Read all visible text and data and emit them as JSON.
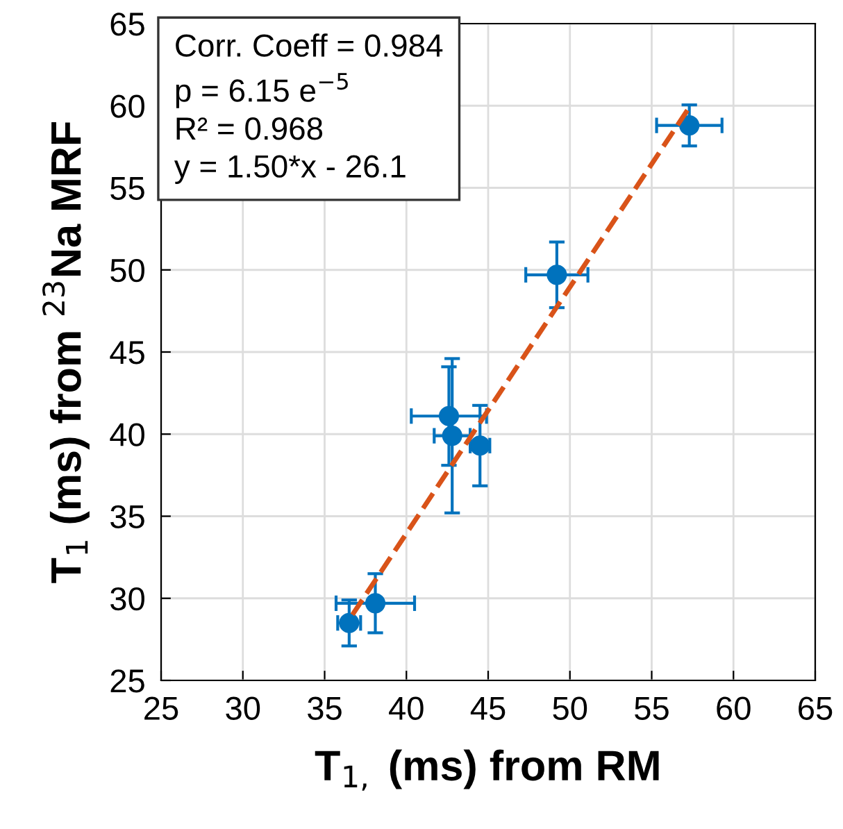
{
  "chart_data": {
    "type": "scatter",
    "xlabel": "T$_{1,}$ (ms) from RM",
    "ylabel": "T$_{1}$ (ms) from $^{23}$Na MRF",
    "xlim": [
      25,
      65
    ],
    "ylim": [
      25,
      65
    ],
    "xticks": [
      25,
      30,
      35,
      40,
      45,
      50,
      55,
      60,
      65
    ],
    "yticks": [
      25,
      30,
      35,
      40,
      45,
      50,
      55,
      60,
      65
    ],
    "grid": true,
    "marker": "circle",
    "series": [
      {
        "color": "#0072bd",
        "x": [
          36.5,
          38.1,
          42.6,
          42.8,
          44.5,
          49.2,
          57.3
        ],
        "values": [
          28.5,
          29.7,
          41.1,
          39.9,
          39.3,
          49.7,
          58.8
        ],
        "errors": [
          1.4,
          1.8,
          3,
          4.7,
          2.45,
          2,
          1.25
        ],
        "xerrors": [
          0.7,
          2.4,
          2.3,
          1.1,
          0.6,
          1.9,
          2.0
        ]
      },
      {
        "type": "line",
        "color": "#d95319",
        "line_style": "dashed",
        "marker": "none",
        "x": [
          36.7,
          57.3
        ],
        "values": [
          29.0,
          59.9
        ]
      }
    ],
    "annotations": [
      "Corr. Coeff = 0.984",
      "p = 6.15 e$^{−5}$",
      "R² = 0.968",
      "y = 1.50*x - 26.1"
    ]
  }
}
